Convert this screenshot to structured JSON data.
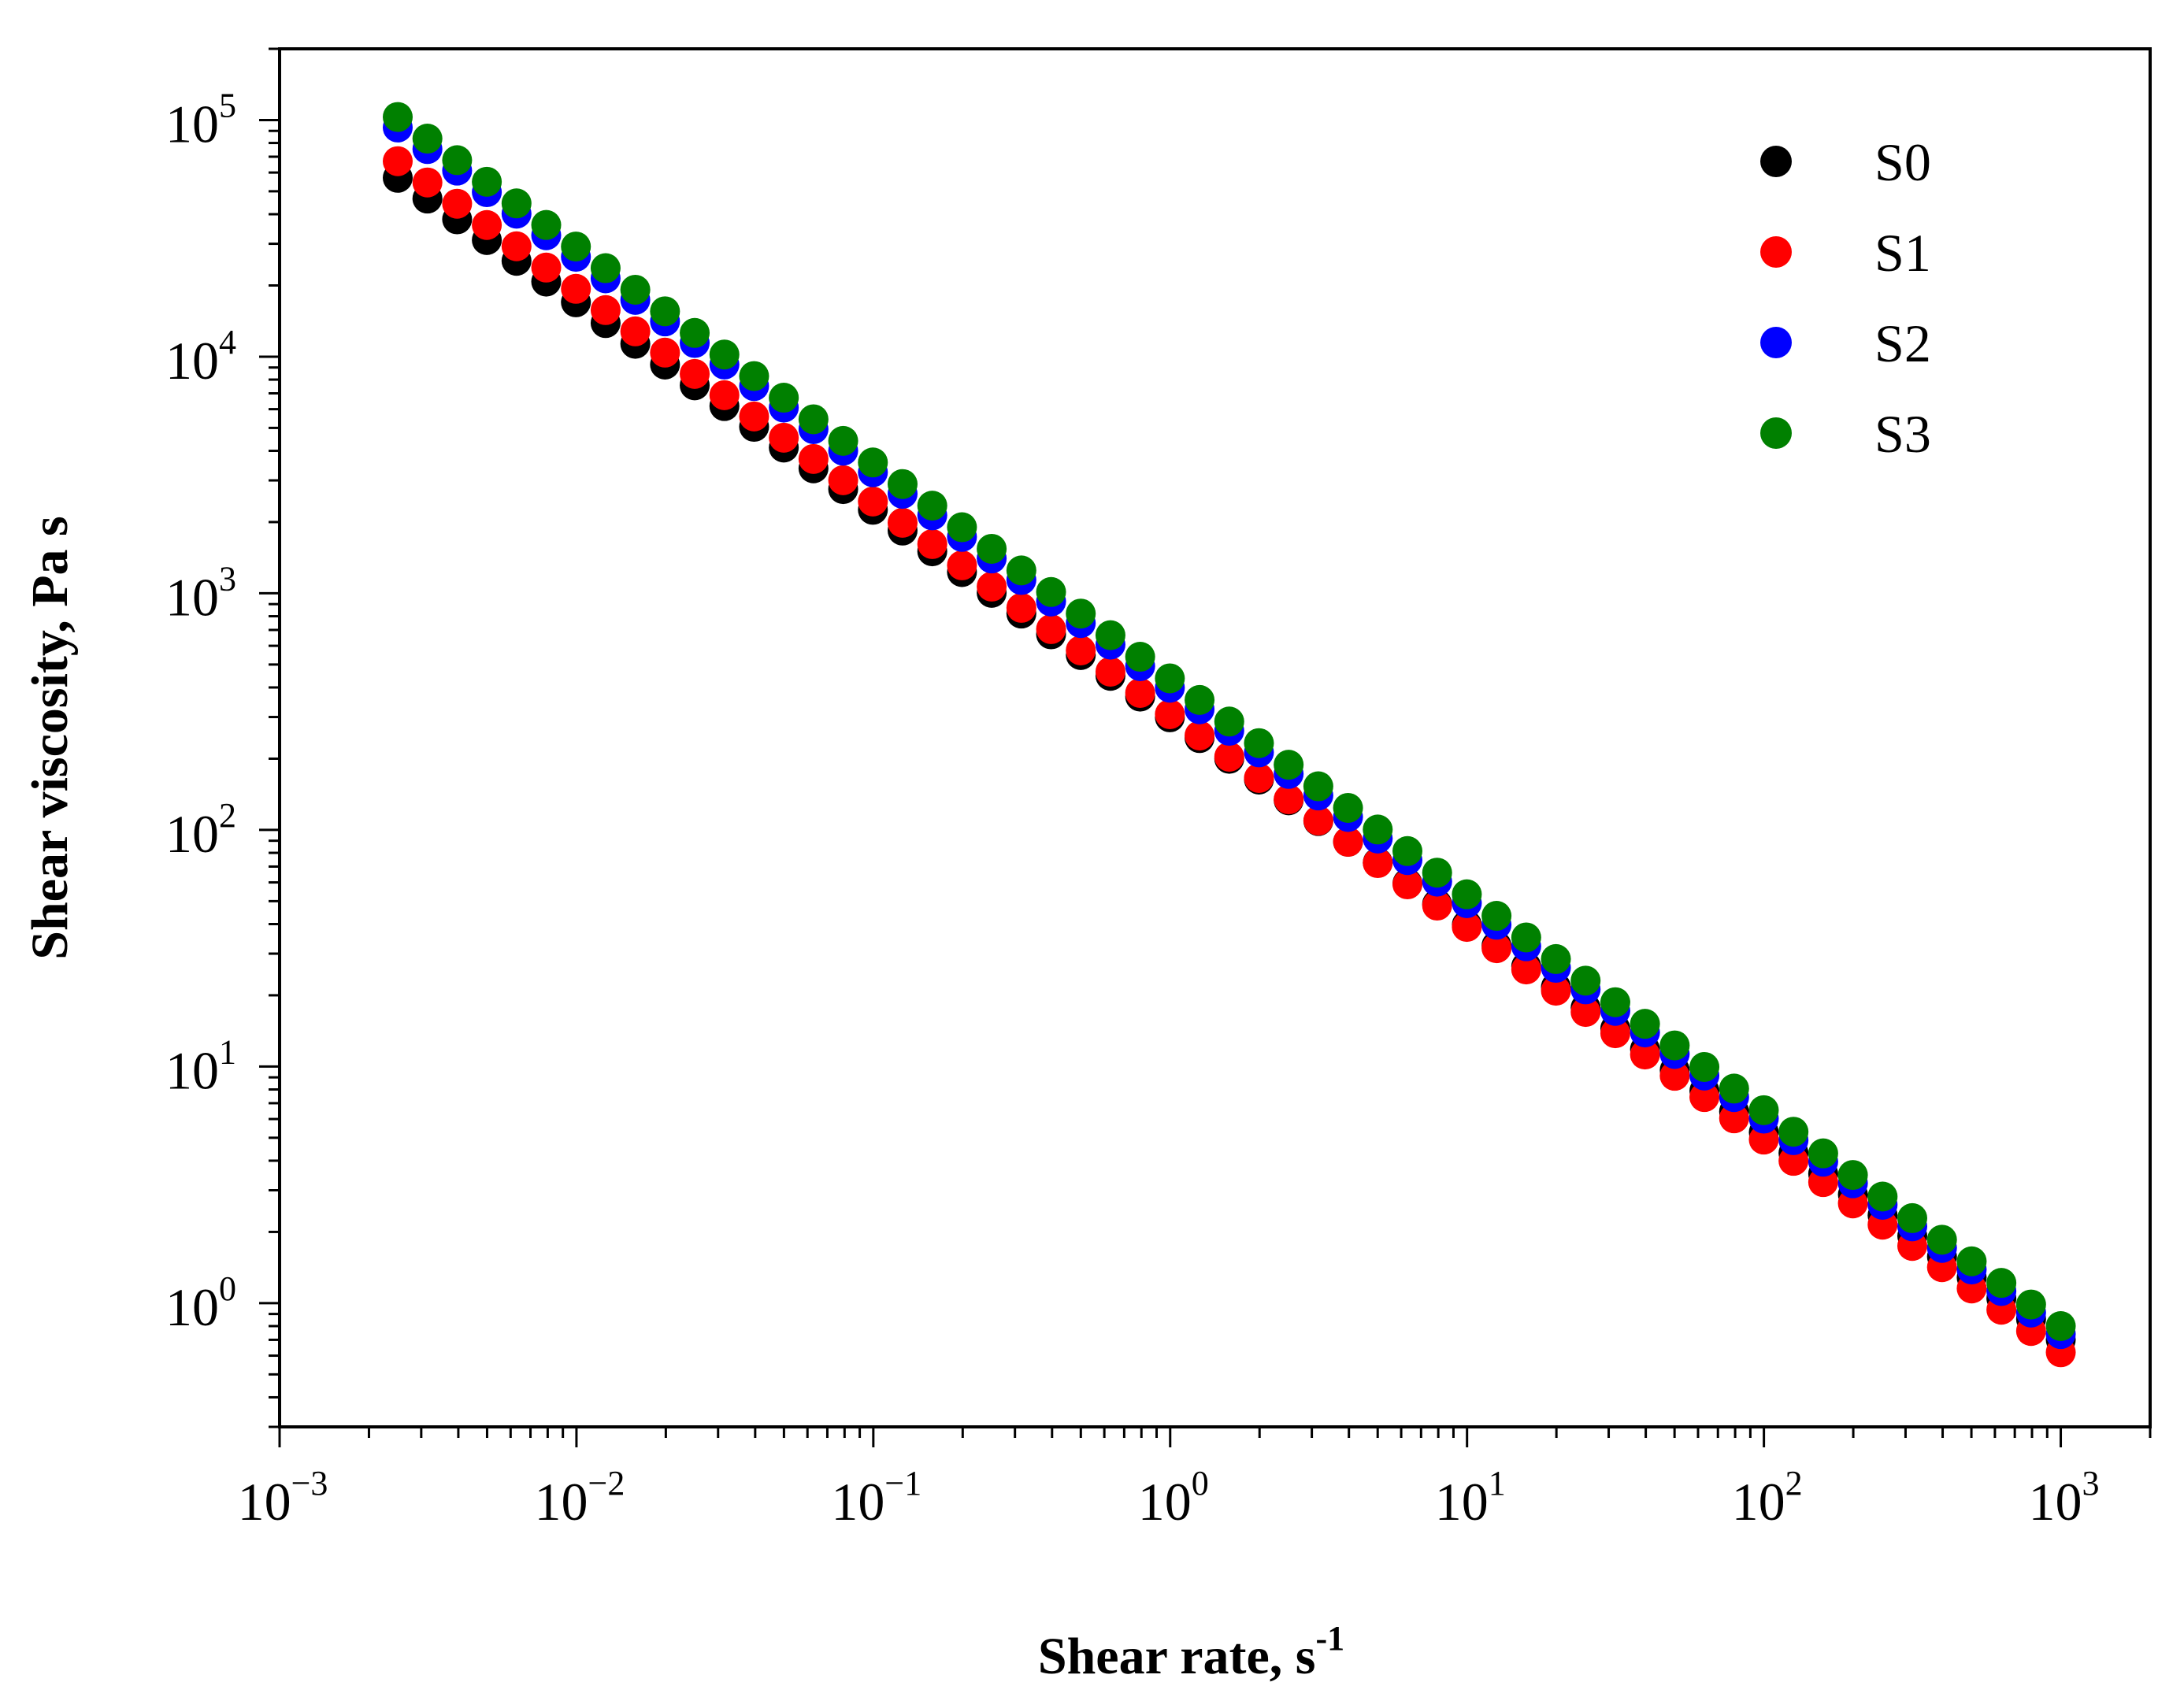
{
  "chart_data": {
    "type": "scatter",
    "title": "",
    "xlabel": "Shear rate, s",
    "xlabel_sup": "-1",
    "ylabel": "Shear viscosity, Pa s",
    "xscale": "log",
    "yscale": "log",
    "xlim": [
      0.001,
      2000
    ],
    "ylim": [
      0.3,
      200000
    ],
    "x_ticks": [
      {
        "base": "10",
        "exp": "−3",
        "value": 0.001
      },
      {
        "base": "10",
        "exp": "−2",
        "value": 0.01
      },
      {
        "base": "10",
        "exp": "−1",
        "value": 0.1
      },
      {
        "base": "10",
        "exp": "0",
        "value": 1
      },
      {
        "base": "10",
        "exp": "1",
        "value": 10
      },
      {
        "base": "10",
        "exp": "2",
        "value": 100
      },
      {
        "base": "10",
        "exp": "3",
        "value": 1000
      }
    ],
    "y_ticks": [
      {
        "base": "10",
        "exp": "0",
        "value": 1
      },
      {
        "base": "10",
        "exp": "1",
        "value": 10
      },
      {
        "base": "10",
        "exp": "2",
        "value": 100
      },
      {
        "base": "10",
        "exp": "3",
        "value": 1000
      },
      {
        "base": "10",
        "exp": "4",
        "value": 10000
      },
      {
        "base": "10",
        "exp": "5",
        "value": 100000
      }
    ],
    "legend_position": "top-right",
    "points_per_decade": 10,
    "x_range": [
      0.0025,
      1000
    ],
    "series": [
      {
        "name": "S0",
        "color": "#000000",
        "y_start": 57000,
        "y_end": 0.7
      },
      {
        "name": "S1",
        "color": "#ff0000",
        "y_start": 67000,
        "y_end": 0.62
      },
      {
        "name": "S2",
        "color": "#0000ff",
        "y_start": 93000,
        "y_end": 0.74
      },
      {
        "name": "S3",
        "color": "#008000",
        "y_start": 103000,
        "y_end": 0.8
      }
    ]
  }
}
